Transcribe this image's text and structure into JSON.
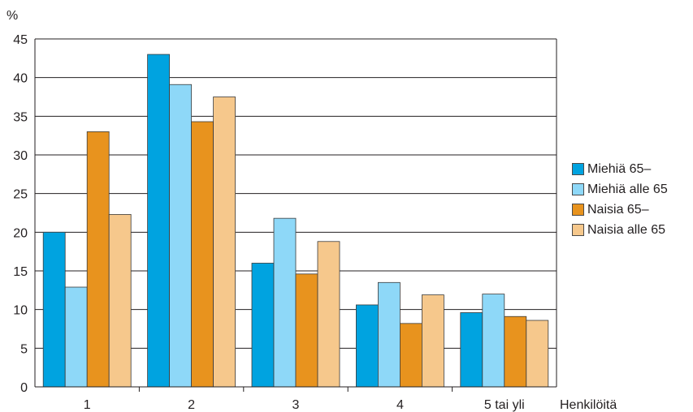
{
  "chart_data": {
    "type": "bar",
    "ylabel": "%",
    "xlabel": "Henkilöitä",
    "ylim": [
      0,
      45
    ],
    "yticks": [
      0,
      5,
      10,
      15,
      20,
      25,
      30,
      35,
      40,
      45
    ],
    "grid": true,
    "legend_position": "right",
    "categories": [
      "1",
      "2",
      "3",
      "4",
      "5 tai yli"
    ],
    "series": [
      {
        "name": "Miehiä 65–",
        "color": "#00a3e0",
        "values": [
          20.0,
          43.0,
          16.0,
          10.6,
          9.6
        ]
      },
      {
        "name": "Miehiä alle 65",
        "color": "#8ed8f8",
        "values": [
          12.9,
          39.1,
          21.8,
          13.5,
          12.0
        ]
      },
      {
        "name": "Naisia 65–",
        "color": "#e8931e",
        "values": [
          33.0,
          34.3,
          14.6,
          8.2,
          9.1
        ]
      },
      {
        "name": "Naisia alle 65",
        "color": "#f6c88c",
        "values": [
          22.3,
          37.5,
          18.8,
          11.9,
          8.6
        ]
      }
    ]
  }
}
